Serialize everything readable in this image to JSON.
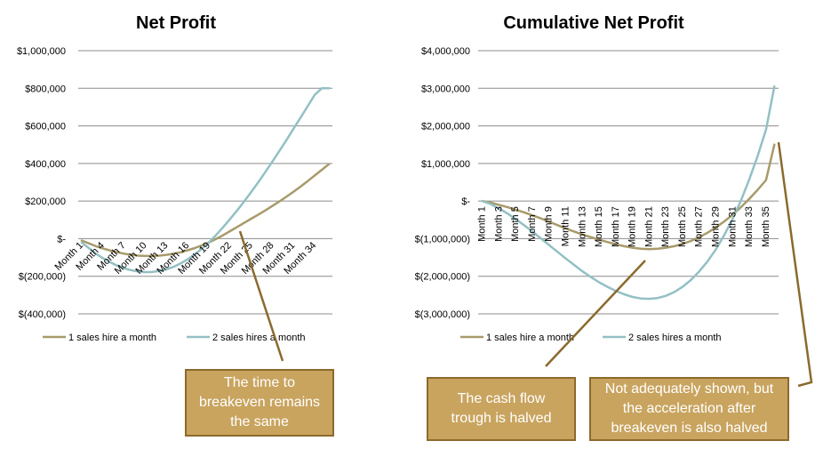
{
  "colors": {
    "series1": "#a89a6a",
    "series2": "#93c0c4",
    "grid": "#8c8c8c",
    "callout_fill": "#c9a45f",
    "callout_border": "#8c6a2c",
    "arrow": "#8a6a2e"
  },
  "chart_data": [
    {
      "type": "line",
      "title": "Net Profit",
      "ylim": [
        -400000,
        1000000
      ],
      "yticks": [
        {
          "value": 1000000,
          "label": "$1,000,000"
        },
        {
          "value": 800000,
          "label": "$800,000"
        },
        {
          "value": 600000,
          "label": "$600,000"
        },
        {
          "value": 400000,
          "label": "$400,000"
        },
        {
          "value": 200000,
          "label": "$200,000"
        },
        {
          "value": 0,
          "label": "$-"
        },
        {
          "value": -200000,
          "label": "$(200,000)"
        },
        {
          "value": -400000,
          "label": "$(400,000)"
        }
      ],
      "categories": [
        "Month 1",
        "Month 2",
        "Month 3",
        "Month 4",
        "Month 5",
        "Month 6",
        "Month 7",
        "Month 8",
        "Month 9",
        "Month 10",
        "Month 11",
        "Month 12",
        "Month 13",
        "Month 14",
        "Month 15",
        "Month 16",
        "Month 17",
        "Month 18",
        "Month 19",
        "Month 20",
        "Month 21",
        "Month 22",
        "Month 23",
        "Month 24",
        "Month 25",
        "Month 26",
        "Month 27",
        "Month 28",
        "Month 29",
        "Month 30",
        "Month 31",
        "Month 32",
        "Month 33",
        "Month 34",
        "Month 35",
        "Month 36"
      ],
      "tick_labels": [
        "Month 1",
        "Month 4",
        "Month 7",
        "Month 10",
        "Month 13",
        "Month 16",
        "Month 19",
        "Month 22",
        "Month 25",
        "Month 28",
        "Month 31",
        "Month 34"
      ],
      "series": [
        {
          "name": "1 sales hire a month",
          "values": [
            -10000,
            -25000,
            -40000,
            -52000,
            -63000,
            -72000,
            -80000,
            -86000,
            -90000,
            -92000,
            -92000,
            -90000,
            -86000,
            -80000,
            -72000,
            -62000,
            -50000,
            -36000,
            -20000,
            -2000,
            18000,
            40000,
            62000,
            84000,
            106000,
            128000,
            150000,
            174000,
            198000,
            224000,
            250000,
            278000,
            306000,
            336000,
            366000,
            396000
          ]
        },
        {
          "name": "2 sales hires a month",
          "values": [
            -20000,
            -50000,
            -80000,
            -104000,
            -125000,
            -143000,
            -158000,
            -168000,
            -175000,
            -178000,
            -177000,
            -172000,
            -163000,
            -150000,
            -132000,
            -110000,
            -84000,
            -54000,
            -20000,
            18000,
            60000,
            104000,
            150000,
            198000,
            248000,
            300000,
            354000,
            410000,
            467000,
            525000,
            585000,
            645000,
            705000,
            765000,
            800000,
            800000
          ]
        }
      ],
      "legend_position": "bottom"
    },
    {
      "type": "line",
      "title": "Cumulative Net Profit",
      "ylim": [
        -3000000,
        4000000
      ],
      "yticks": [
        {
          "value": 4000000,
          "label": "$4,000,000"
        },
        {
          "value": 3000000,
          "label": "$3,000,000"
        },
        {
          "value": 2000000,
          "label": "$2,000,000"
        },
        {
          "value": 1000000,
          "label": "$1,000,000"
        },
        {
          "value": 0,
          "label": "$-"
        },
        {
          "value": -1000000,
          "label": "$(1,000,000)"
        },
        {
          "value": -2000000,
          "label": "$(2,000,000)"
        },
        {
          "value": -3000000,
          "label": "$(3,000,000)"
        }
      ],
      "categories": [
        "Month 1",
        "Month 2",
        "Month 3",
        "Month 4",
        "Month 5",
        "Month 6",
        "Month 7",
        "Month 8",
        "Month 9",
        "Month 10",
        "Month 11",
        "Month 12",
        "Month 13",
        "Month 14",
        "Month 15",
        "Month 16",
        "Month 17",
        "Month 18",
        "Month 19",
        "Month 20",
        "Month 21",
        "Month 22",
        "Month 23",
        "Month 24",
        "Month 25",
        "Month 26",
        "Month 27",
        "Month 28",
        "Month 29",
        "Month 30",
        "Month 31",
        "Month 32",
        "Month 33",
        "Month 34",
        "Month 35",
        "Month 36"
      ],
      "tick_labels": [
        "Month 1",
        "Month 3",
        "Month 5",
        "Month 7",
        "Month 9",
        "Month 11",
        "Month 13",
        "Month 15",
        "Month 17",
        "Month 19",
        "Month 21",
        "Month 23",
        "Month 25",
        "Month 27",
        "Month 29",
        "Month 31",
        "Month 33",
        "Month 35"
      ],
      "series": [
        {
          "name": "1 sales hire a month",
          "values": [
            0,
            -40000,
            -100000,
            -160000,
            -230000,
            -300000,
            -380000,
            -460000,
            -550000,
            -640000,
            -730000,
            -810000,
            -890000,
            -960000,
            -1030000,
            -1090000,
            -1150000,
            -1200000,
            -1240000,
            -1270000,
            -1280000,
            -1270000,
            -1240000,
            -1200000,
            -1140000,
            -1060000,
            -960000,
            -840000,
            -700000,
            -540000,
            -360000,
            -160000,
            60000,
            300000,
            560000,
            1500000
          ]
        },
        {
          "name": "2 sales hires a month",
          "values": [
            0,
            -80000,
            -200000,
            -330000,
            -480000,
            -640000,
            -810000,
            -990000,
            -1170000,
            -1350000,
            -1530000,
            -1700000,
            -1870000,
            -2020000,
            -2160000,
            -2280000,
            -2390000,
            -2480000,
            -2550000,
            -2590000,
            -2600000,
            -2580000,
            -2520000,
            -2420000,
            -2280000,
            -2100000,
            -1870000,
            -1600000,
            -1280000,
            -900000,
            -470000,
            20000,
            580000,
            1200000,
            1900000,
            3050000
          ]
        }
      ],
      "legend_position": "bottom"
    }
  ],
  "callouts": {
    "breakeven": "The time to breakeven remains the same",
    "trough": "The cash flow trough is halved",
    "acceleration": "Not adequately shown, but the acceleration after breakeven is also halved"
  }
}
